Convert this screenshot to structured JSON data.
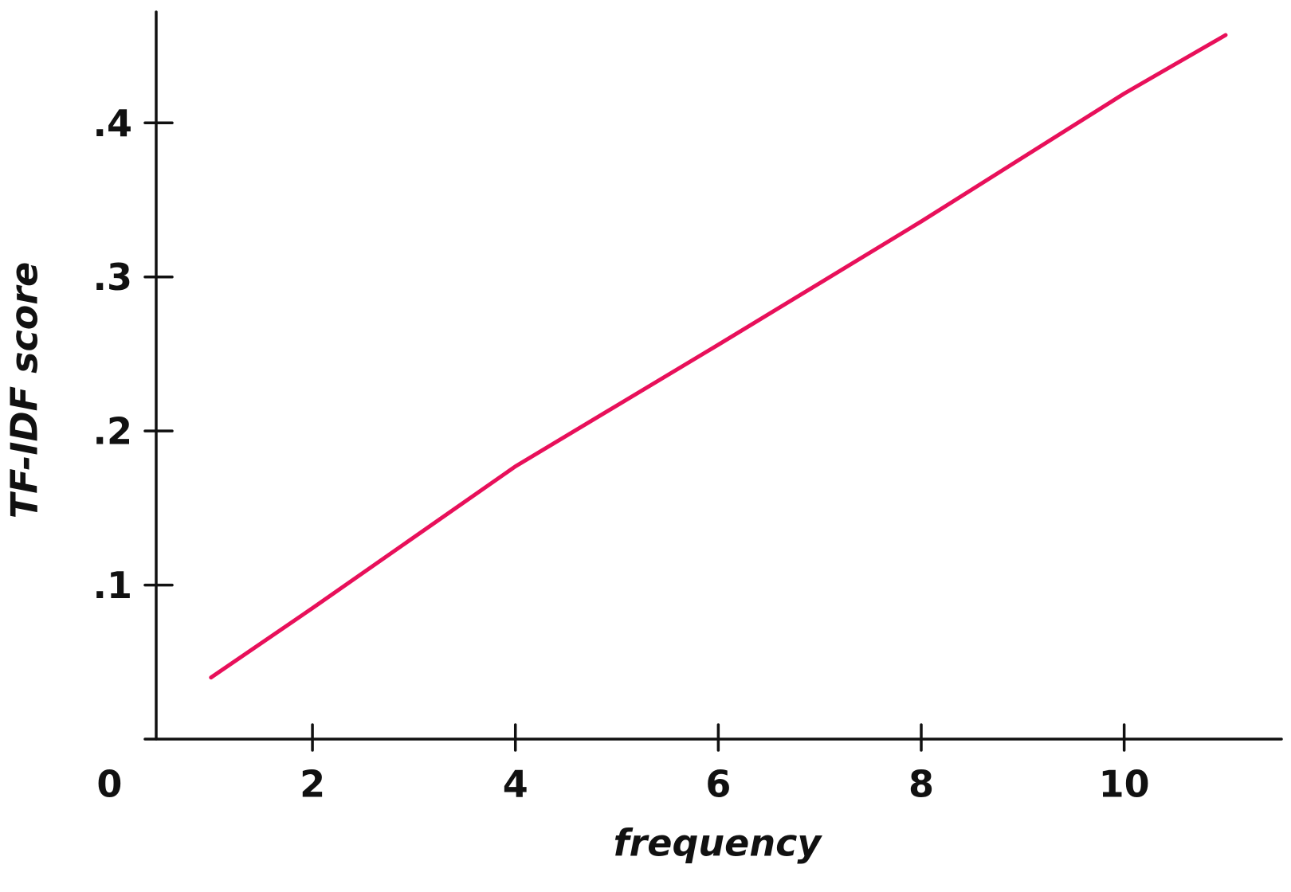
{
  "chart_data": {
    "type": "line",
    "x_label": "frequency",
    "y_label": "TF-IDF score",
    "x": [
      1,
      2,
      4,
      6,
      8,
      10,
      11
    ],
    "series": [
      {
        "color": "#e8105a",
        "values": [
          0.04,
          0.085,
          0.177,
          0.256,
          0.336,
          0.419,
          0.457
        ]
      }
    ],
    "xlim": [
      0.46,
      11.55
    ],
    "ylim": [
      0,
      0.472
    ],
    "xticks": [
      0,
      2,
      4,
      6,
      8,
      10
    ],
    "yticks": [
      {
        "value": 0.1,
        "label": ".1"
      },
      {
        "value": 0.2,
        "label": ".2"
      },
      {
        "value": 0.3,
        "label": ".3"
      },
      {
        "value": 0.4,
        "label": ".4"
      }
    ],
    "grid": false
  }
}
